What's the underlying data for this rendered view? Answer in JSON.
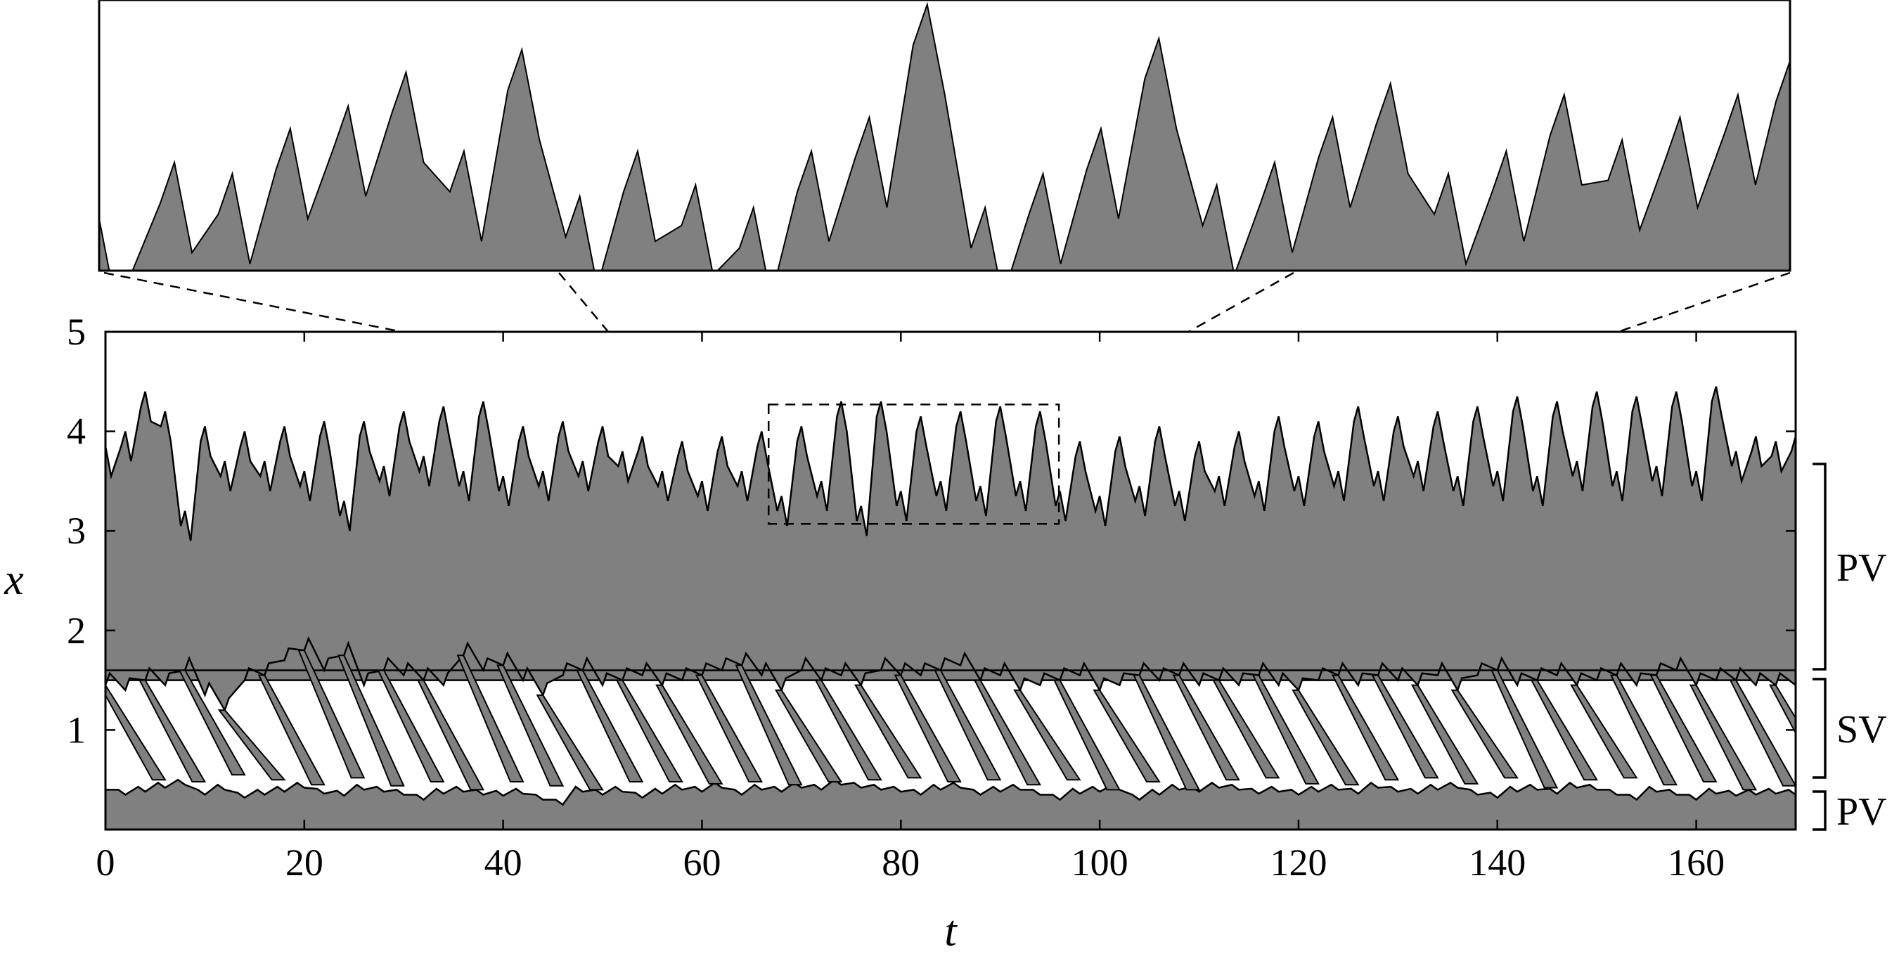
{
  "chart_data": {
    "type": "heatmap",
    "title": "",
    "xlabel": "t",
    "ylabel": "x",
    "xlim": [
      0,
      170
    ],
    "ylim": [
      0,
      5
    ],
    "xticks": [
      0,
      20,
      40,
      60,
      80,
      100,
      120,
      140,
      160
    ],
    "yticks": [
      1,
      2,
      3,
      4,
      5
    ],
    "colors": {
      "fill": "#808080",
      "background": "#ffffff",
      "line": "#000000"
    },
    "grid": false,
    "legend": "none",
    "zoom_window": {
      "t": [
        66.7,
        95.9
      ],
      "x": [
        3.07,
        4.27
      ]
    },
    "regions": [
      {
        "label": "PV",
        "x": [
          1.6,
          3.6
        ]
      },
      {
        "label": "SV",
        "x": [
          0.5,
          1.5
        ]
      },
      {
        "label": "PV",
        "x": [
          0.0,
          0.35
        ]
      }
    ],
    "upper_boundary": {
      "t": [
        0,
        2,
        4,
        6,
        8,
        10,
        12,
        14,
        16,
        18,
        20,
        22,
        24,
        26,
        28,
        30,
        32,
        34,
        36,
        38,
        40,
        42,
        44,
        46,
        48,
        50,
        52,
        54,
        56,
        58,
        60,
        62,
        64,
        66,
        68,
        70,
        72,
        74,
        76,
        78,
        80,
        82,
        84,
        86,
        88,
        90,
        92,
        94,
        96,
        98,
        100,
        102,
        104,
        106,
        108,
        110,
        112,
        114,
        116,
        118,
        120,
        122,
        124,
        126,
        128,
        130,
        132,
        134,
        136,
        138,
        140,
        142,
        144,
        146,
        148,
        150,
        152,
        154,
        156,
        158,
        160,
        162,
        164,
        166,
        168,
        170
      ],
      "peaks": [
        3.85,
        4.0,
        4.4,
        4.2,
        3.2,
        4.05,
        3.7,
        4.0,
        3.7,
        4.05,
        3.6,
        4.1,
        3.3,
        4.1,
        3.65,
        4.2,
        3.75,
        4.25,
        3.6,
        4.3,
        3.55,
        4.05,
        3.6,
        4.1,
        3.7,
        4.05,
        3.8,
        3.95,
        3.6,
        3.9,
        3.5,
        3.95,
        3.6,
        4.0,
        3.35,
        4.05,
        3.5,
        4.3,
        3.25,
        4.3,
        3.4,
        4.15,
        3.5,
        4.2,
        3.45,
        4.25,
        3.5,
        4.2,
        3.4,
        3.9,
        3.35,
        3.95,
        3.45,
        4.05,
        3.4,
        3.9,
        3.55,
        4.0,
        3.5,
        4.15,
        3.55,
        4.1,
        3.6,
        4.25,
        3.6,
        4.15,
        3.7,
        4.2,
        3.55,
        4.25,
        3.6,
        4.35,
        3.55,
        4.3,
        3.7,
        4.4,
        3.6,
        4.35,
        3.65,
        4.4,
        3.6,
        4.45,
        3.8,
        3.95,
        3.9,
        3.95
      ]
    },
    "lower_boundary": {
      "t": [
        0,
        2,
        4,
        6,
        8,
        10,
        12,
        14,
        16,
        18,
        20,
        22,
        24,
        26,
        28,
        30,
        32,
        34,
        36,
        38,
        40,
        42,
        44,
        46,
        48,
        50,
        52,
        54,
        56,
        58,
        60,
        62,
        64,
        66,
        68,
        70,
        72,
        74,
        76,
        78,
        80,
        82,
        84,
        86,
        88,
        90,
        92,
        94,
        96,
        98,
        100,
        102,
        104,
        106,
        108,
        110,
        112,
        114,
        116,
        118,
        120,
        122,
        124,
        126,
        128,
        130,
        132,
        134,
        136,
        138,
        140,
        142,
        144,
        146,
        148,
        150,
        152,
        154,
        156,
        158,
        160,
        162,
        164,
        166,
        168,
        170
      ],
      "top": [
        1.45,
        1.4,
        1.5,
        1.45,
        1.6,
        1.35,
        1.2,
        1.5,
        1.55,
        1.7,
        1.8,
        1.6,
        1.75,
        1.45,
        1.6,
        1.55,
        1.5,
        1.45,
        1.75,
        1.6,
        1.65,
        1.5,
        1.35,
        1.55,
        1.6,
        1.45,
        1.5,
        1.55,
        1.45,
        1.5,
        1.55,
        1.6,
        1.65,
        1.55,
        1.4,
        1.6,
        1.5,
        1.55,
        1.45,
        1.6,
        1.55,
        1.55,
        1.6,
        1.65,
        1.5,
        1.55,
        1.4,
        1.45,
        1.5,
        1.55,
        1.4,
        1.45,
        1.55,
        1.5,
        1.55,
        1.45,
        1.5,
        1.45,
        1.55,
        1.45,
        1.4,
        1.5,
        1.55,
        1.45,
        1.55,
        1.5,
        1.45,
        1.55,
        1.4,
        1.55,
        1.6,
        1.45,
        1.5,
        1.55,
        1.45,
        1.5,
        1.55,
        1.45,
        1.55,
        1.6,
        1.45,
        1.5,
        1.5,
        1.45,
        1.45,
        1.45
      ],
      "bottom": [
        0.4,
        0.35,
        0.38,
        0.42,
        0.45,
        0.35,
        0.4,
        0.32,
        0.35,
        0.38,
        0.42,
        0.36,
        0.34,
        0.4,
        0.38,
        0.35,
        0.3,
        0.36,
        0.38,
        0.35,
        0.34,
        0.36,
        0.3,
        0.25,
        0.38,
        0.35,
        0.38,
        0.32,
        0.36,
        0.4,
        0.38,
        0.42,
        0.35,
        0.4,
        0.38,
        0.42,
        0.4,
        0.45,
        0.42,
        0.4,
        0.38,
        0.35,
        0.4,
        0.42,
        0.35,
        0.38,
        0.4,
        0.35,
        0.3,
        0.36,
        0.38,
        0.4,
        0.3,
        0.35,
        0.4,
        0.38,
        0.42,
        0.4,
        0.36,
        0.38,
        0.35,
        0.38,
        0.4,
        0.36,
        0.42,
        0.38,
        0.36,
        0.4,
        0.42,
        0.35,
        0.32,
        0.38,
        0.4,
        0.36,
        0.42,
        0.4,
        0.35,
        0.3,
        0.38,
        0.35,
        0.3,
        0.36,
        0.34,
        0.35,
        0.36,
        0.35
      ]
    },
    "zoom_detail": {
      "t": [
        66.7,
        68.0,
        69.0,
        70.0,
        71.0,
        72.0,
        73.0,
        74.0,
        75.0,
        76.0,
        77.0,
        78.0,
        79.0,
        80.0,
        81.0,
        82.0,
        83.0,
        84.0,
        85.0,
        86.0,
        87.0,
        88.0,
        89.0,
        90.0,
        91.0,
        92.0,
        93.0,
        94.0,
        95.0,
        95.9
      ],
      "x": [
        3.3,
        3.55,
        3.5,
        3.7,
        3.8,
        3.95,
        3.6,
        4.05,
        3.4,
        3.6,
        3.45,
        3.35,
        3.6,
        3.75,
        4.25,
        3.35,
        3.5,
        3.7,
        4.1,
        3.45,
        3.55,
        3.75,
        3.9,
        3.5,
        3.6,
        3.85,
        3.65,
        3.75,
        3.85,
        4.0
      ]
    }
  },
  "axes": {
    "x_tick_labels": [
      "0",
      "20",
      "40",
      "60",
      "80",
      "100",
      "120",
      "140",
      "160"
    ],
    "y_tick_labels": [
      "1",
      "2",
      "3",
      "4",
      "5"
    ],
    "xlabel": "t",
    "ylabel": "x"
  },
  "annotations": {
    "regions": [
      "PV",
      "SV",
      "PV"
    ]
  }
}
